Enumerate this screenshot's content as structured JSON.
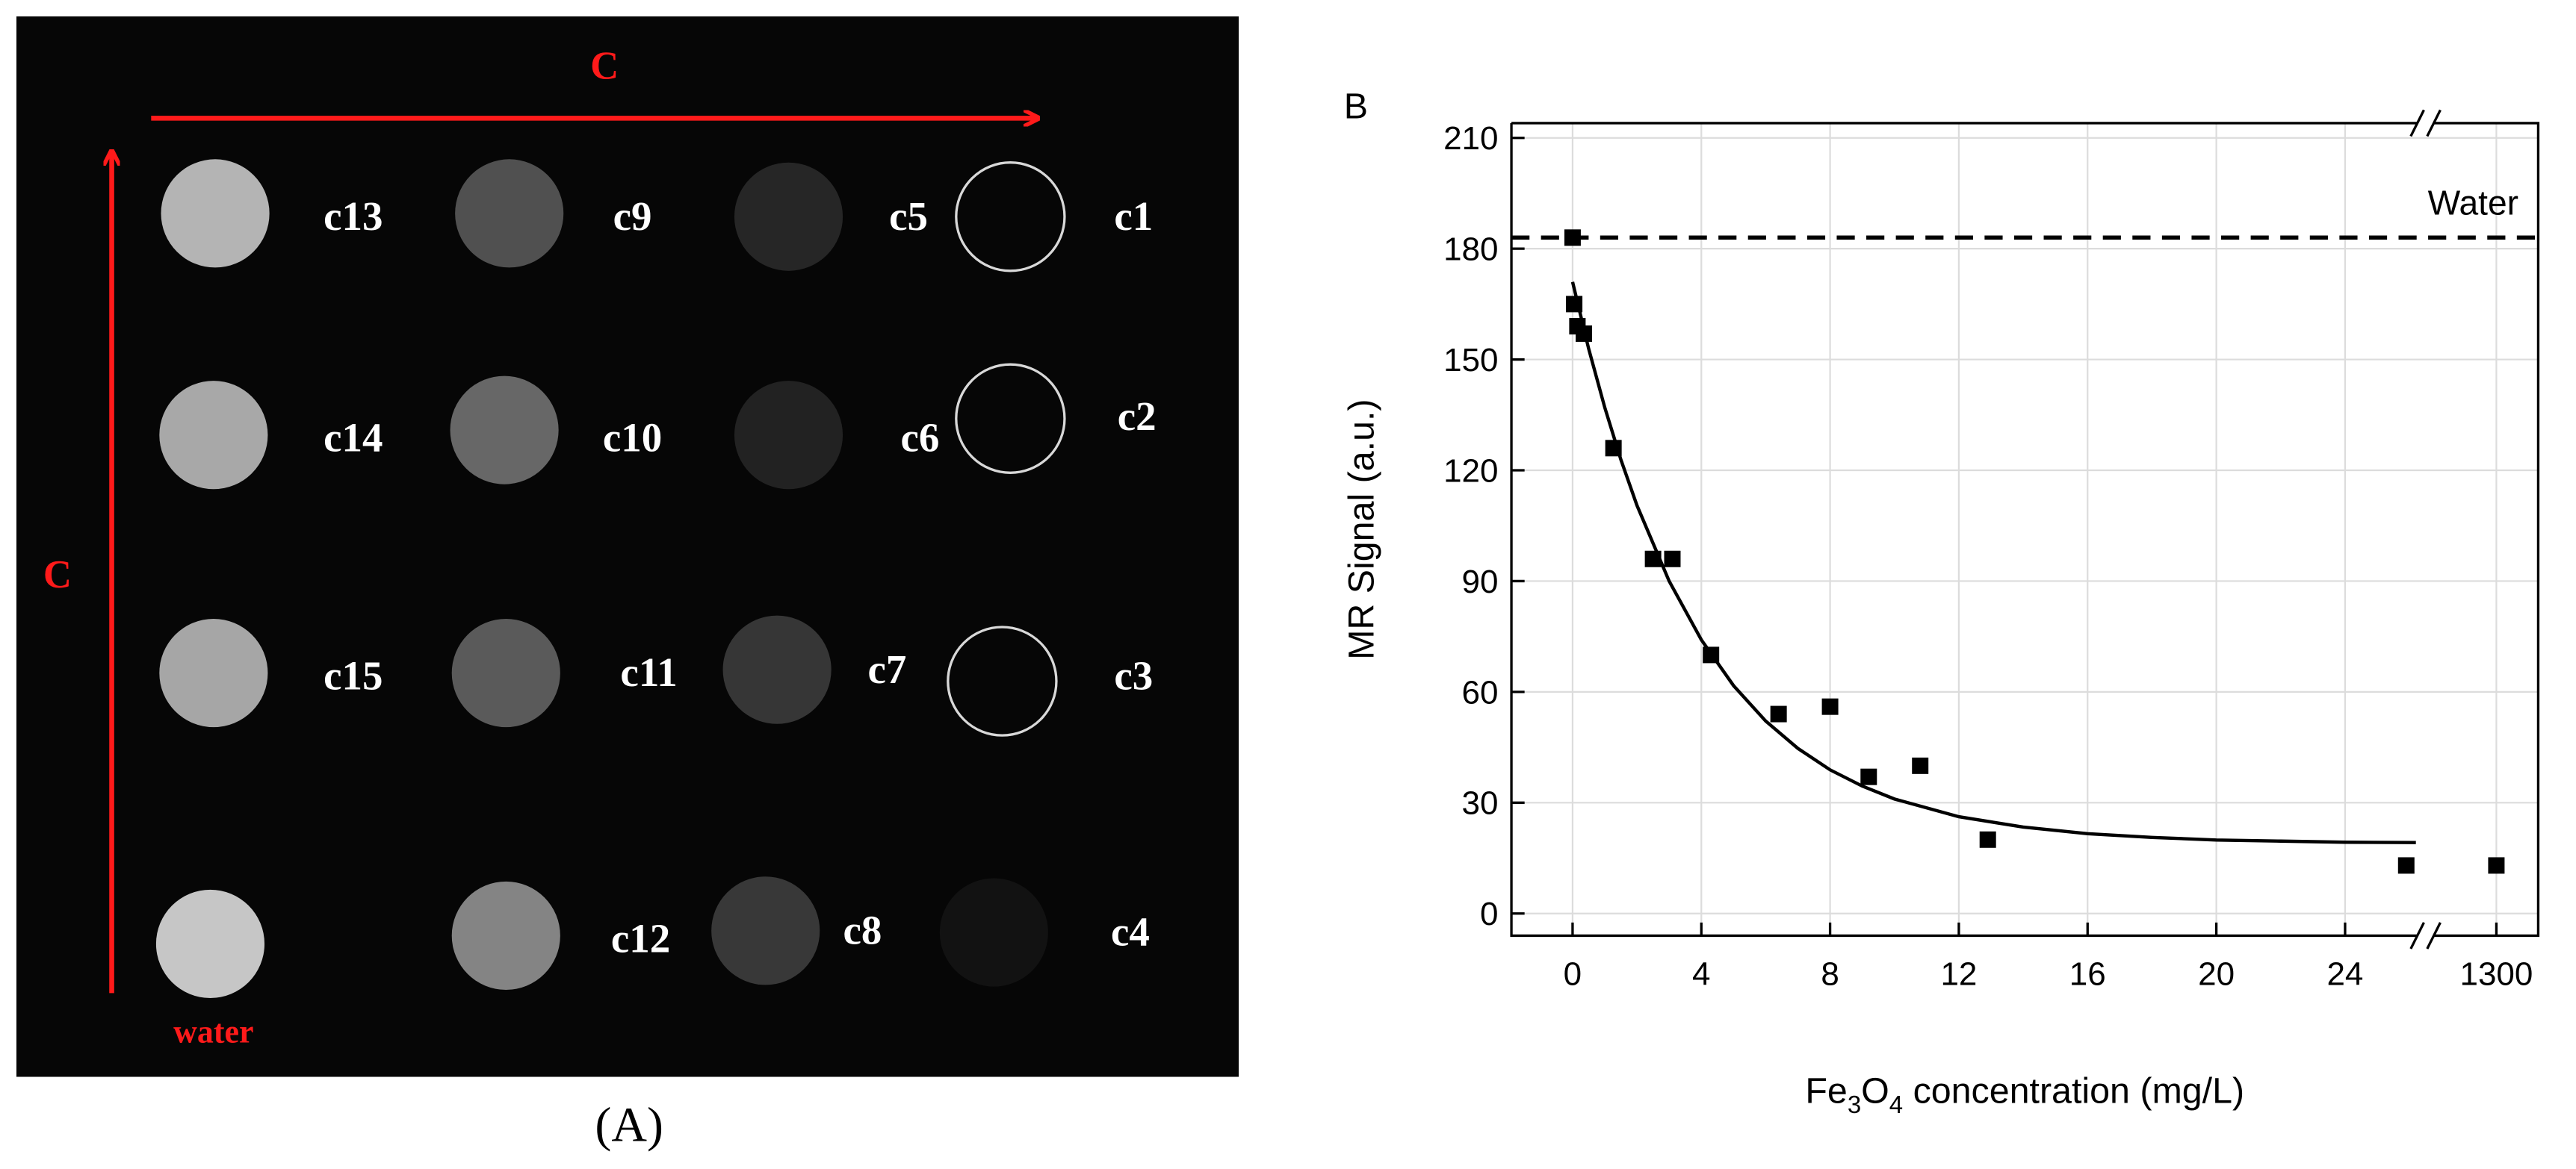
{
  "panel_a": {
    "label": "(A)",
    "arrow_labels": [
      "C",
      "C"
    ],
    "samples": [
      "c13",
      "c9",
      "c5",
      "c1",
      "c14",
      "c10",
      "c6",
      "c2",
      "c15",
      "c11",
      "c7",
      "c3",
      "water",
      "c12",
      "c8",
      "c4"
    ]
  },
  "chart_data": {
    "type": "scatter",
    "panel_label": "B",
    "xlabel": [
      "Fe",
      "3",
      "O",
      "4",
      " concentration (mg/L)"
    ],
    "ylabel": "MR Signal (a.u.)",
    "ylim": [
      -6,
      214
    ],
    "yticks": [
      0,
      30,
      60,
      90,
      120,
      150,
      180,
      210
    ],
    "x_segments": [
      {
        "xlim": [
          -1.9,
          26.5
        ],
        "xticks": [
          0,
          4,
          8,
          12,
          16,
          20,
          24
        ]
      },
      {
        "xlim": [
          1297.8,
          1301.3
        ],
        "xticks": [
          1300
        ]
      }
    ],
    "grid": true,
    "reference_line": {
      "label": "Water",
      "value": 183,
      "color": "#000000"
    },
    "series": [
      {
        "type": "scatter",
        "color": "#000000",
        "x": [
          0,
          0.05,
          0.15,
          0.35,
          1.27,
          2.5,
          3.1,
          4.3,
          6.4,
          8.0,
          9.2,
          10.8,
          12.9,
          25.9,
          1300
        ],
        "values": [
          183,
          165,
          159,
          157,
          126,
          96,
          96,
          70,
          54,
          56,
          37,
          40,
          20,
          13,
          13
        ]
      },
      {
        "type": "line",
        "color": "#000000",
        "x": [
          0,
          0.5,
          1,
          1.5,
          2,
          3,
          4,
          5,
          6,
          7,
          8,
          9,
          10,
          12,
          14,
          16,
          18,
          20,
          22,
          24,
          26.2
        ],
        "values": [
          171,
          152.9,
          137.0,
          122.9,
          110.5,
          90.0,
          74.1,
          61.7,
          52.1,
          44.7,
          38.9,
          34.5,
          31.0,
          26.2,
          23.4,
          21.6,
          20.6,
          19.9,
          19.6,
          19.3,
          19.2
        ]
      }
    ]
  }
}
